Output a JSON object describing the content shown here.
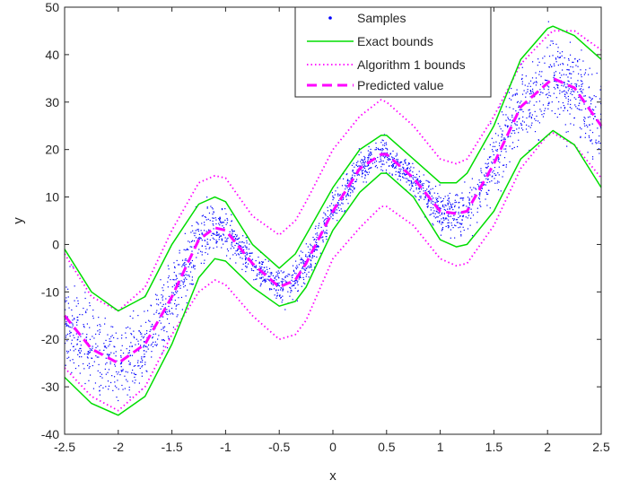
{
  "chart_data": {
    "type": "scatter",
    "title": "",
    "xlabel": "x",
    "ylabel": "y",
    "xlim": [
      -2.5,
      2.5
    ],
    "ylim": [
      -40,
      50
    ],
    "x_ticks": [
      -2.5,
      -2,
      -1.5,
      -1,
      -0.5,
      0,
      0.5,
      1,
      1.5,
      2,
      2.5
    ],
    "x_tick_labels": [
      "-2.5",
      "-2",
      "-1.5",
      "-1",
      "-0.5",
      "0",
      "0.5",
      "1",
      "1.5",
      "2",
      "2.5"
    ],
    "y_ticks": [
      -40,
      -30,
      -20,
      -10,
      0,
      10,
      20,
      30,
      40,
      50
    ],
    "y_tick_labels": [
      "-40",
      "-30",
      "-20",
      "-10",
      "0",
      "10",
      "20",
      "30",
      "40",
      "50"
    ],
    "grid": false,
    "legend_position": "top-center",
    "x": [
      -2.5,
      -2.25,
      -2.0,
      -1.75,
      -1.5,
      -1.25,
      -1.1,
      -1.0,
      -0.75,
      -0.5,
      -0.35,
      -0.25,
      0.0,
      0.25,
      0.45,
      0.5,
      0.75,
      1.0,
      1.15,
      1.25,
      1.5,
      1.75,
      2.0,
      2.05,
      2.25,
      2.5
    ],
    "series": [
      {
        "name": "Samples",
        "style": "points",
        "color": "#0000ff",
        "values": null,
        "note_values": "dense cloud of points scattered around the predicted value"
      },
      {
        "name": "Exact bounds",
        "style": "solid",
        "color": "#00dd00",
        "upper": [
          -1,
          -10,
          -14,
          -11,
          0,
          8.5,
          10,
          9,
          0,
          -5,
          -2,
          2,
          12,
          20,
          23,
          23,
          18,
          13,
          13,
          15,
          25,
          39,
          45.5,
          46,
          44,
          39
        ],
        "lower": [
          -28,
          -33.5,
          -36,
          -32,
          -21,
          -7,
          -3,
          -3.5,
          -9,
          -13,
          -12,
          -9,
          3,
          11,
          15,
          15,
          10,
          1,
          -0.5,
          0,
          7,
          18,
          23,
          24,
          21,
          12
        ]
      },
      {
        "name": "Algorithm 1 bounds",
        "style": "dotted",
        "color": "#ff00ff",
        "upper": [
          -2,
          -11,
          -14,
          -9,
          3,
          13,
          14.5,
          14,
          6,
          2,
          5,
          9,
          20,
          27,
          30.5,
          30,
          25,
          18,
          17,
          18,
          27,
          38,
          44,
          45,
          45,
          41
        ],
        "lower": [
          -26,
          -32,
          -35,
          -30,
          -19,
          -10,
          -7.5,
          -8.5,
          -15,
          -20,
          -19,
          -16,
          -3,
          3.5,
          8,
          8,
          4,
          -3,
          -4.5,
          -4,
          4,
          16,
          23,
          23.5,
          21,
          14
        ]
      },
      {
        "name": "Predicted value",
        "style": "dashed",
        "color": "#ff00ff",
        "values": [
          -15,
          -22,
          -25,
          -21,
          -11,
          1,
          3.5,
          3,
          -4,
          -9,
          -7.5,
          -4,
          7,
          16,
          19,
          19,
          14,
          7,
          6.5,
          7,
          17,
          29,
          34,
          35,
          33,
          25
        ]
      }
    ]
  }
}
